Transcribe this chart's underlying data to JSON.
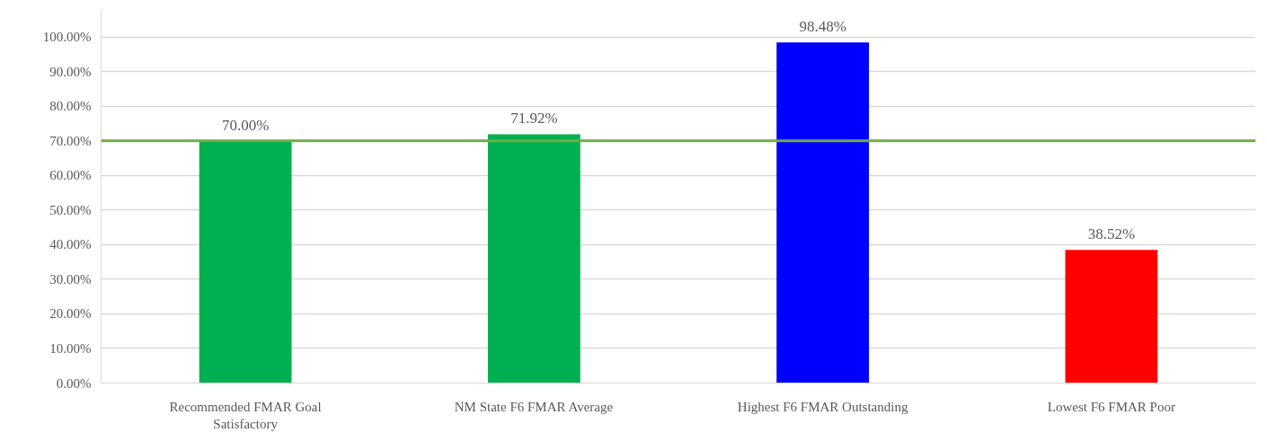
{
  "chart_data": {
    "type": "bar",
    "categories": [
      "Recommended FMAR Goal Satisfactory",
      "NM State F6 FMAR Average",
      "Highest F6 FMAR Outstanding",
      "Lowest F6 FMAR Poor"
    ],
    "values": [
      70,
      71.92,
      98.48,
      38.52
    ],
    "colors": [
      "#00b050",
      "#00b050",
      "#0000ff",
      "#ff0000"
    ],
    "value_labels": [
      "70.00%",
      "71.92%",
      "98.48%",
      "38.52%"
    ],
    "ylim": [
      0,
      108
    ],
    "yticks": [
      {
        "value": 0,
        "label": "0.00%"
      },
      {
        "value": 10,
        "label": "10.00%"
      },
      {
        "value": 20,
        "label": "20.00%"
      },
      {
        "value": 30,
        "label": "30.00%"
      },
      {
        "value": 40,
        "label": "40.00%"
      },
      {
        "value": 50,
        "label": "50.00%"
      },
      {
        "value": 60,
        "label": "60.00%"
      },
      {
        "value": 70,
        "label": "70.00%"
      },
      {
        "value": 80,
        "label": "80.00%"
      },
      {
        "value": 90,
        "label": "90.00%"
      },
      {
        "value": 100,
        "label": "100.00%"
      }
    ],
    "ref_lines": [
      {
        "axis": "y",
        "value": 70,
        "color": "#70ad47"
      }
    ],
    "grid": "y"
  }
}
